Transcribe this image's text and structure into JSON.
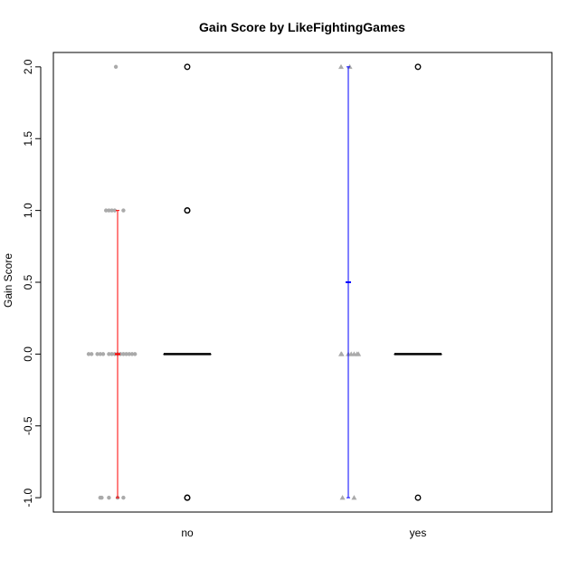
{
  "chart_data": {
    "type": "boxplot",
    "title": "Gain Score by LikeFightingGames",
    "xlabel": "",
    "ylabel": "Gain Score",
    "ylim": [
      -1.1,
      2.1
    ],
    "yticks": [
      -1.0,
      -0.5,
      0.0,
      0.5,
      1.0,
      1.5,
      2.0
    ],
    "ytick_labels": [
      "-1.0",
      "-0.5",
      "0.0",
      "0.5",
      "1.0",
      "1.5",
      "2.0"
    ],
    "categories": [
      "no",
      "yes"
    ],
    "boxplots": [
      {
        "category": "no",
        "min": 0,
        "q1": 0,
        "median": 0,
        "q3": 0,
        "max": 0,
        "outliers": [
          2.0,
          1.0,
          1.0,
          -1.0,
          -1.0
        ]
      },
      {
        "category": "yes",
        "min": 0,
        "q1": 0,
        "median": 0,
        "q3": 0,
        "max": 0,
        "outliers": [
          2.0,
          -1.0
        ]
      }
    ],
    "mean_ci": [
      {
        "category": "no",
        "mean": 0.0,
        "lower": -1.0,
        "upper": 1.0,
        "color": "#ff0000"
      },
      {
        "category": "yes",
        "mean": 0.5,
        "lower": -1.0,
        "upper": 2.0,
        "color": "#0000ff"
      }
    ],
    "raw_points": [
      {
        "category": "no",
        "marker": "circle",
        "color": "#aaaaaa",
        "x": [
          -0.06,
          -0.4,
          -0.3,
          -0.2,
          -0.1,
          0.2,
          -1.0,
          -0.9,
          -0.7,
          -0.6,
          -0.5,
          -0.3,
          -0.2,
          -0.1,
          0.0,
          0.1,
          0.2,
          0.3,
          0.4,
          0.5,
          0.6,
          -0.6,
          -0.55,
          -0.3,
          0.0,
          0.2
        ],
        "y": [
          2,
          1,
          1,
          1,
          1,
          1,
          0,
          0,
          0,
          0,
          0,
          0,
          0,
          0,
          0,
          0,
          0,
          0,
          0,
          0,
          0,
          -1,
          -1,
          -1,
          -1,
          -1
        ]
      },
      {
        "category": "yes",
        "marker": "triangle",
        "color": "#aaaaaa",
        "x": [
          -0.25,
          0.05,
          -0.25,
          -0.23,
          0.0,
          0.1,
          0.2,
          0.3,
          0.35,
          -0.2,
          0.2
        ],
        "y": [
          2,
          2,
          0,
          0,
          0,
          0,
          0,
          0,
          0,
          -1,
          -1
        ]
      }
    ]
  }
}
